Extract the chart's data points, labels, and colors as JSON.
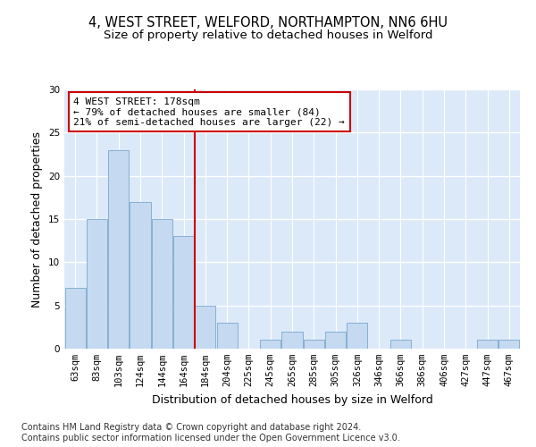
{
  "title_line1": "4, WEST STREET, WELFORD, NORTHAMPTON, NN6 6HU",
  "title_line2": "Size of property relative to detached houses in Welford",
  "xlabel": "Distribution of detached houses by size in Welford",
  "ylabel": "Number of detached properties",
  "categories": [
    "63sqm",
    "83sqm",
    "103sqm",
    "124sqm",
    "144sqm",
    "164sqm",
    "184sqm",
    "204sqm",
    "225sqm",
    "245sqm",
    "265sqm",
    "285sqm",
    "305sqm",
    "326sqm",
    "346sqm",
    "366sqm",
    "386sqm",
    "406sqm",
    "427sqm",
    "447sqm",
    "467sqm"
  ],
  "values": [
    7,
    15,
    23,
    17,
    15,
    13,
    5,
    3,
    0,
    1,
    2,
    1,
    2,
    3,
    0,
    1,
    0,
    0,
    0,
    1,
    1
  ],
  "bar_color": "#c5d9f1",
  "bar_edge_color": "#7aa8cc",
  "vline_x": 5.5,
  "vline_color": "#cc0000",
  "annotation_text": "4 WEST STREET: 178sqm\n← 79% of detached houses are smaller (84)\n21% of semi-detached houses are larger (22) →",
  "annotation_box_color": "#ffffff",
  "annotation_box_edge": "#cc0000",
  "ylim": [
    0,
    30
  ],
  "yticks": [
    0,
    5,
    10,
    15,
    20,
    25,
    30
  ],
  "background_color": "#dce9f8",
  "grid_color": "#ffffff",
  "footer_line1": "Contains HM Land Registry data © Crown copyright and database right 2024.",
  "footer_line2": "Contains public sector information licensed under the Open Government Licence v3.0.",
  "title_fontsize": 10.5,
  "subtitle_fontsize": 9.5,
  "axis_label_fontsize": 9,
  "tick_fontsize": 7.5,
  "annotation_fontsize": 8,
  "footer_fontsize": 7
}
